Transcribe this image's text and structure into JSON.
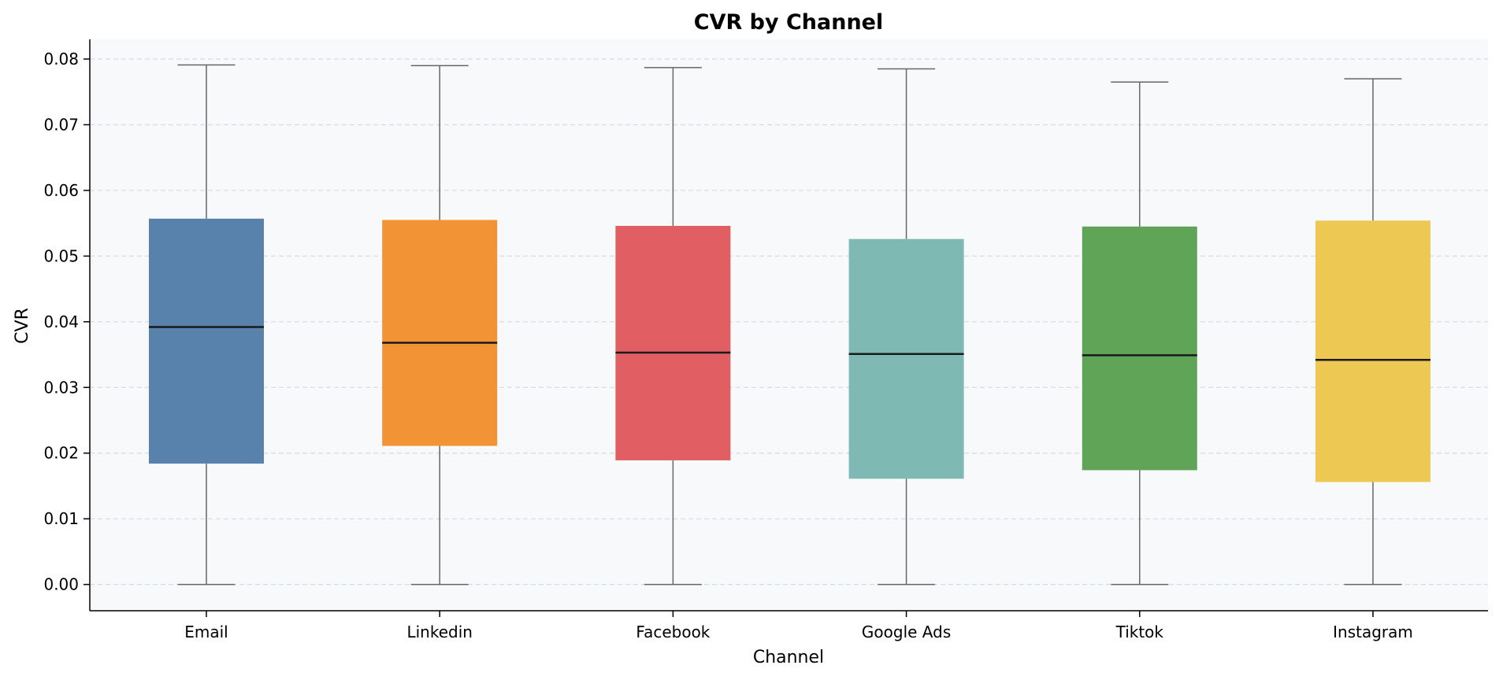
{
  "chart_data": {
    "type": "box",
    "title": "CVR by Channel",
    "xlabel": "Channel",
    "ylabel": "CVR",
    "ylim": [
      -0.004,
      0.083
    ],
    "yticks": [
      0.0,
      0.01,
      0.02,
      0.03,
      0.04,
      0.05,
      0.06,
      0.07,
      0.08
    ],
    "ytick_labels": [
      "0.00",
      "0.01",
      "0.02",
      "0.03",
      "0.04",
      "0.05",
      "0.06",
      "0.07",
      "0.08"
    ],
    "grid": "horizontal dashed",
    "categories": [
      "Email",
      "Linkedin",
      "Facebook",
      "Google Ads",
      "Tiktok",
      "Instagram"
    ],
    "boxes": [
      {
        "category": "Email",
        "whisker_low": 0.0,
        "q1": 0.0184,
        "median": 0.0392,
        "q3": 0.0557,
        "whisker_high": 0.0791,
        "color": "#5881ab"
      },
      {
        "category": "Linkedin",
        "whisker_low": 0.0,
        "q1": 0.0211,
        "median": 0.0368,
        "q3": 0.0555,
        "whisker_high": 0.079,
        "color": "#f29336"
      },
      {
        "category": "Facebook",
        "whisker_low": 0.0,
        "q1": 0.0189,
        "median": 0.0353,
        "q3": 0.0546,
        "whisker_high": 0.0787,
        "color": "#e15f63"
      },
      {
        "category": "Google Ads",
        "whisker_low": 0.0,
        "q1": 0.0161,
        "median": 0.0351,
        "q3": 0.0526,
        "whisker_high": 0.0785,
        "color": "#7fb9b3"
      },
      {
        "category": "Tiktok",
        "whisker_low": 0.0,
        "q1": 0.0174,
        "median": 0.0349,
        "q3": 0.0545,
        "whisker_high": 0.0765,
        "color": "#60a557"
      },
      {
        "category": "Instagram",
        "whisker_low": 0.0,
        "q1": 0.0156,
        "median": 0.0342,
        "q3": 0.0554,
        "whisker_high": 0.077,
        "color": "#edc954"
      }
    ]
  }
}
